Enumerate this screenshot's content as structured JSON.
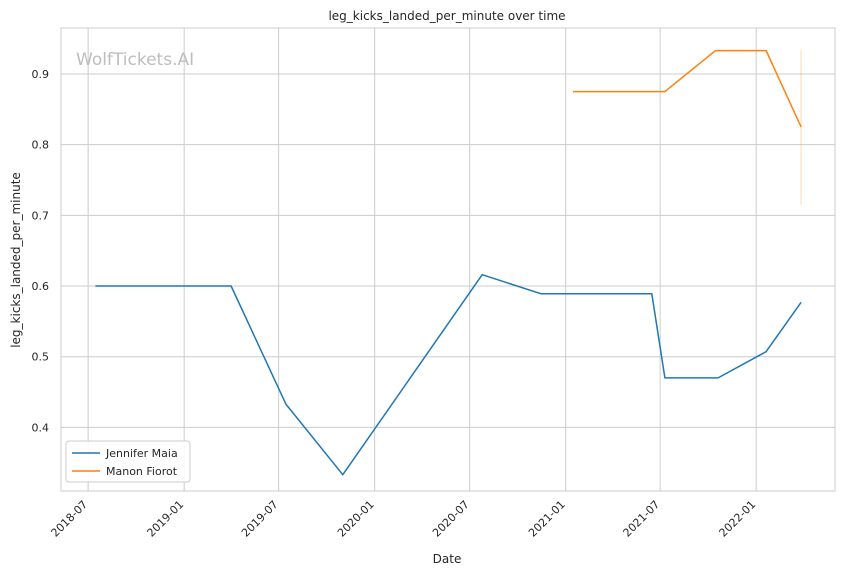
{
  "chart_data": {
    "type": "line",
    "title": "leg_kicks_landed_per_minute over time",
    "xlabel": "Date",
    "ylabel": "leg_kicks_landed_per_minute",
    "watermark": "WolfTickets.AI",
    "x_ticks": [
      "2018-07",
      "2019-01",
      "2019-07",
      "2020-01",
      "2020-07",
      "2021-01",
      "2021-07",
      "2022-01"
    ],
    "y_ticks": [
      "0.4",
      "0.5",
      "0.6",
      "0.7",
      "0.8",
      "0.9"
    ],
    "xlim": [
      "2018-05-10",
      "2022-06-01"
    ],
    "ylim": [
      0.31,
      0.965
    ],
    "grid": true,
    "legend_position": "lower-left",
    "series": [
      {
        "name": "Jennifer Maia",
        "color": "#1f77b4",
        "points": [
          {
            "x": "2018-07-15",
            "y": 0.6
          },
          {
            "x": "2019-04-01",
            "y": 0.6
          },
          {
            "x": "2019-07-15",
            "y": 0.433
          },
          {
            "x": "2019-11-01",
            "y": 0.333
          },
          {
            "x": "2020-07-25",
            "y": 0.616
          },
          {
            "x": "2020-11-15",
            "y": 0.589
          },
          {
            "x": "2021-06-15",
            "y": 0.589
          },
          {
            "x": "2021-07-10",
            "y": 0.47
          },
          {
            "x": "2021-10-20",
            "y": 0.47
          },
          {
            "x": "2022-01-20",
            "y": 0.507
          },
          {
            "x": "2022-03-28",
            "y": 0.577
          }
        ]
      },
      {
        "name": "Manon Fiorot",
        "color": "#ff7f0e",
        "points": [
          {
            "x": "2021-01-15",
            "y": 0.875
          },
          {
            "x": "2021-07-10",
            "y": 0.875
          },
          {
            "x": "2021-10-15",
            "y": 0.933
          },
          {
            "x": "2022-01-20",
            "y": 0.933
          },
          {
            "x": "2022-03-28",
            "y": 0.825
          }
        ],
        "error_band": {
          "x": "2022-03-28",
          "low": 0.715,
          "high": 0.933
        }
      }
    ]
  }
}
